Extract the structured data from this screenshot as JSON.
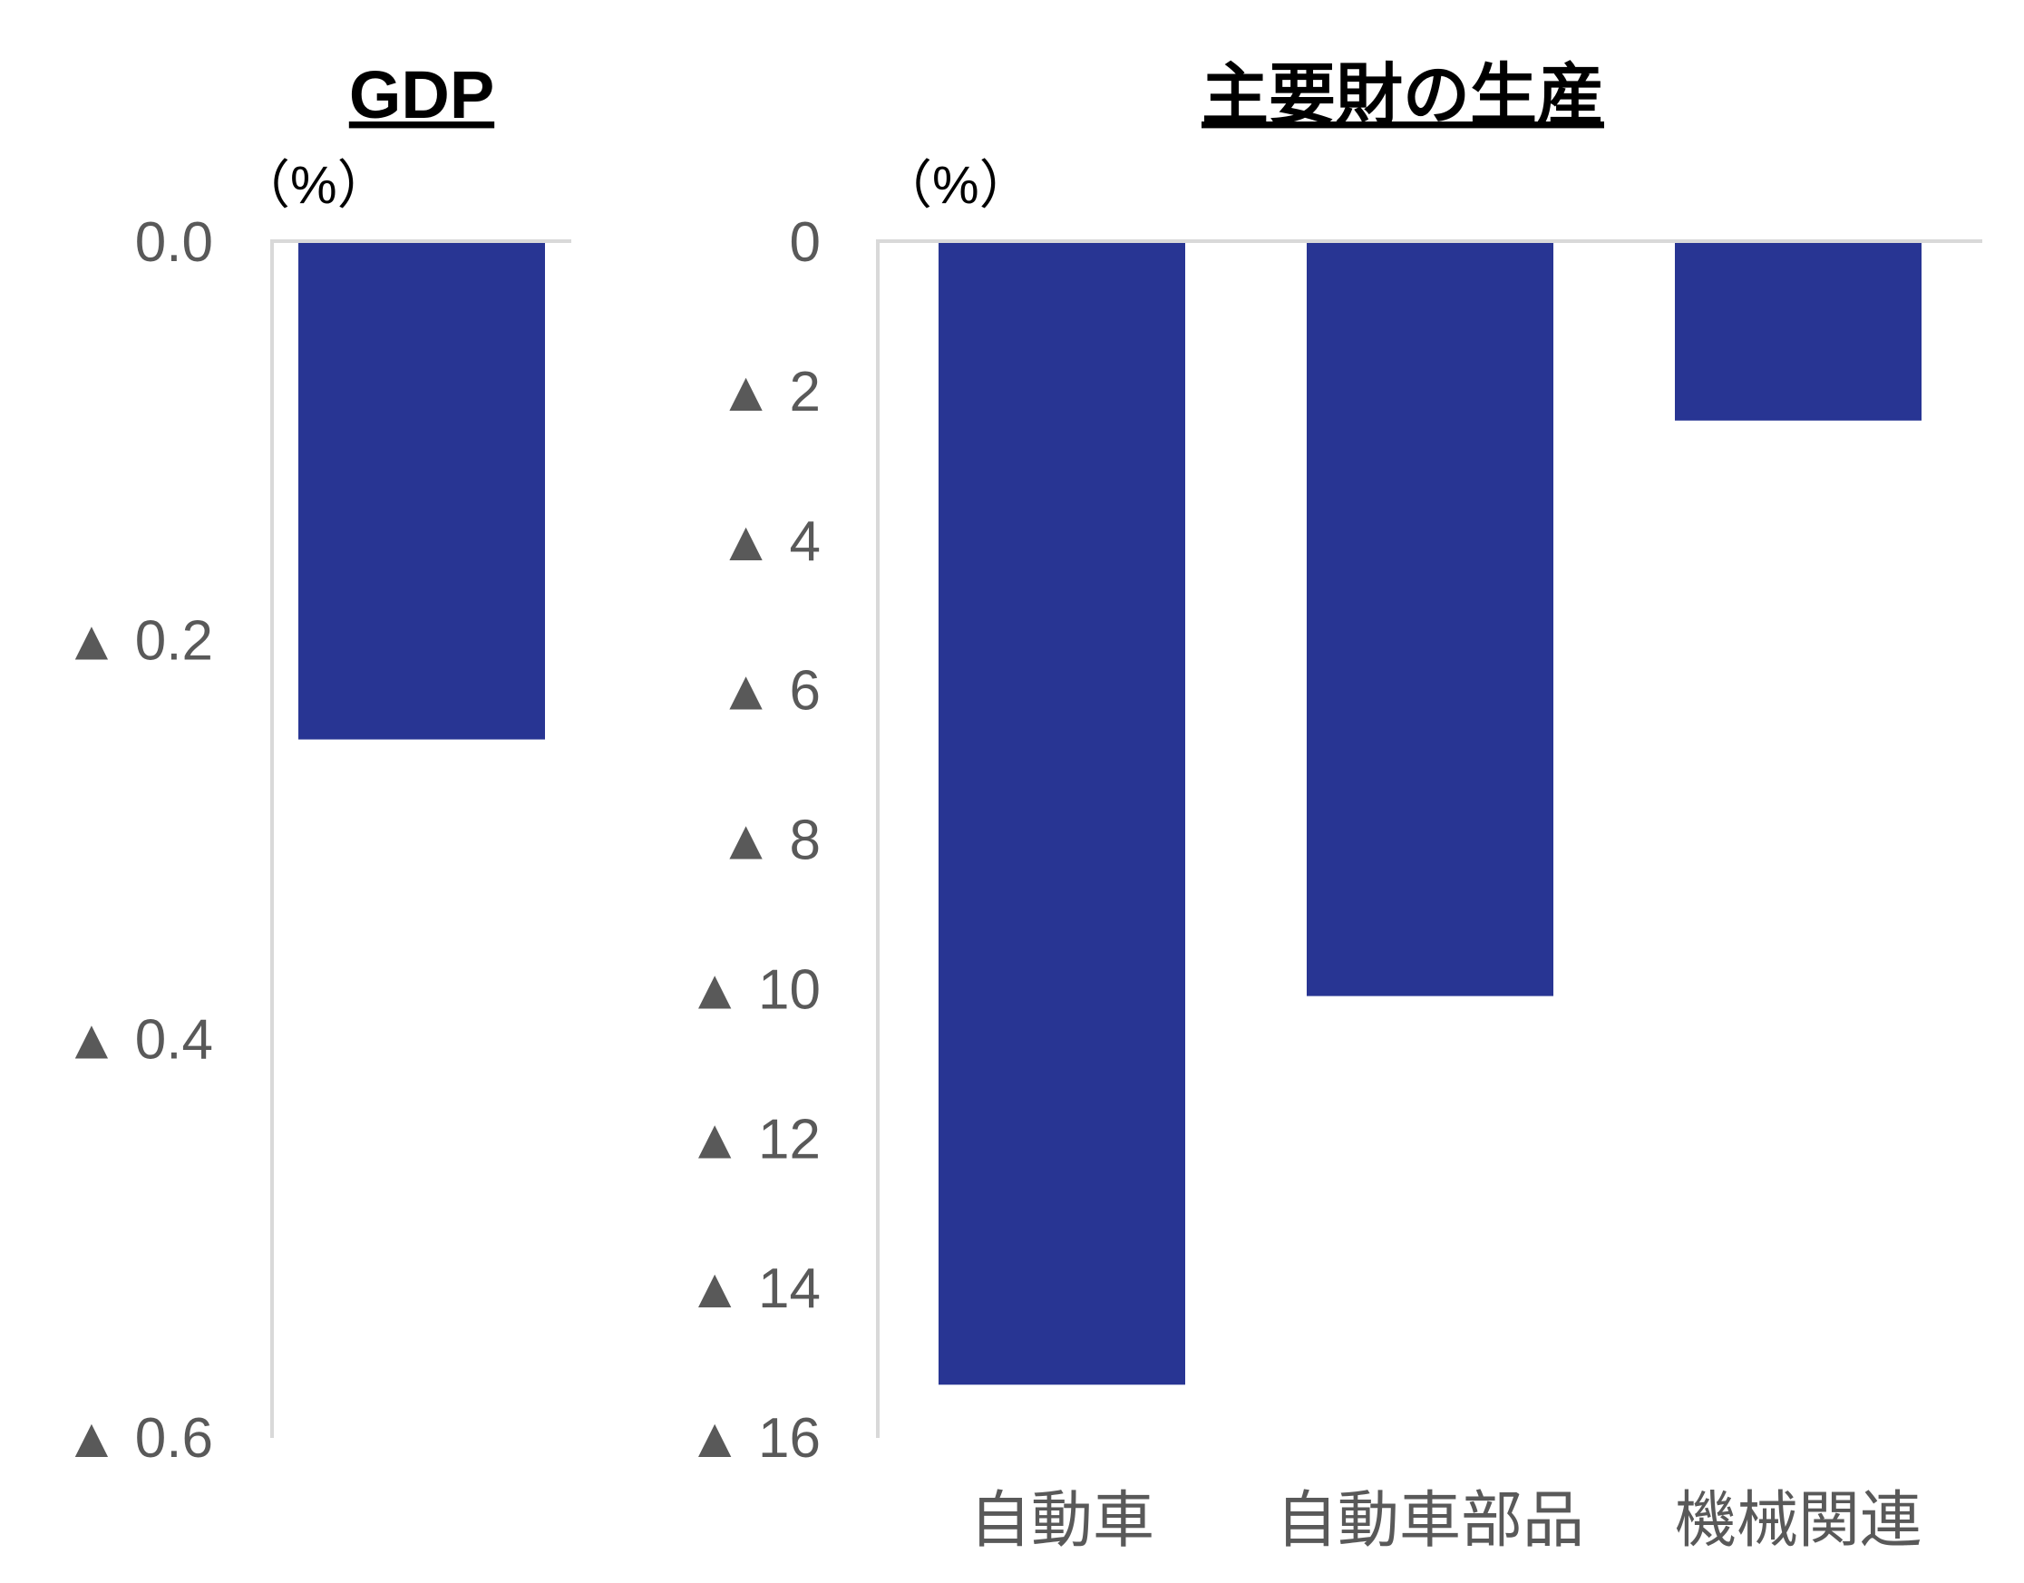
{
  "colors": {
    "bar": "#283593",
    "axis": "#d9d9d9",
    "tick_text": "#595959"
  },
  "chart_data": [
    {
      "type": "bar",
      "title": "GDP",
      "unit_label": "（%）",
      "categories": [
        ""
      ],
      "values": [
        -0.25
      ],
      "ylim": [
        -0.6,
        0
      ],
      "yticks": [
        0,
        -0.2,
        -0.4,
        -0.6
      ],
      "ytick_labels": [
        "0.0",
        "▲ 0.2",
        "▲ 0.4",
        "▲ 0.6"
      ],
      "grid": false,
      "legend": "none"
    },
    {
      "type": "bar",
      "title": "主要財の生産",
      "unit_label": "（%）",
      "categories": [
        "自動車",
        "自動車部品",
        "機械関連"
      ],
      "values": [
        -15.3,
        -10.1,
        -2.4
      ],
      "ylim": [
        -16,
        0
      ],
      "yticks": [
        0,
        -2,
        -4,
        -6,
        -8,
        -10,
        -12,
        -14,
        -16
      ],
      "ytick_labels": [
        "0",
        "▲ 2",
        "▲ 4",
        "▲ 6",
        "▲ 8",
        "▲ 10",
        "▲ 12",
        "▲ 14",
        "▲ 16"
      ],
      "grid": false,
      "legend": "none"
    }
  ]
}
